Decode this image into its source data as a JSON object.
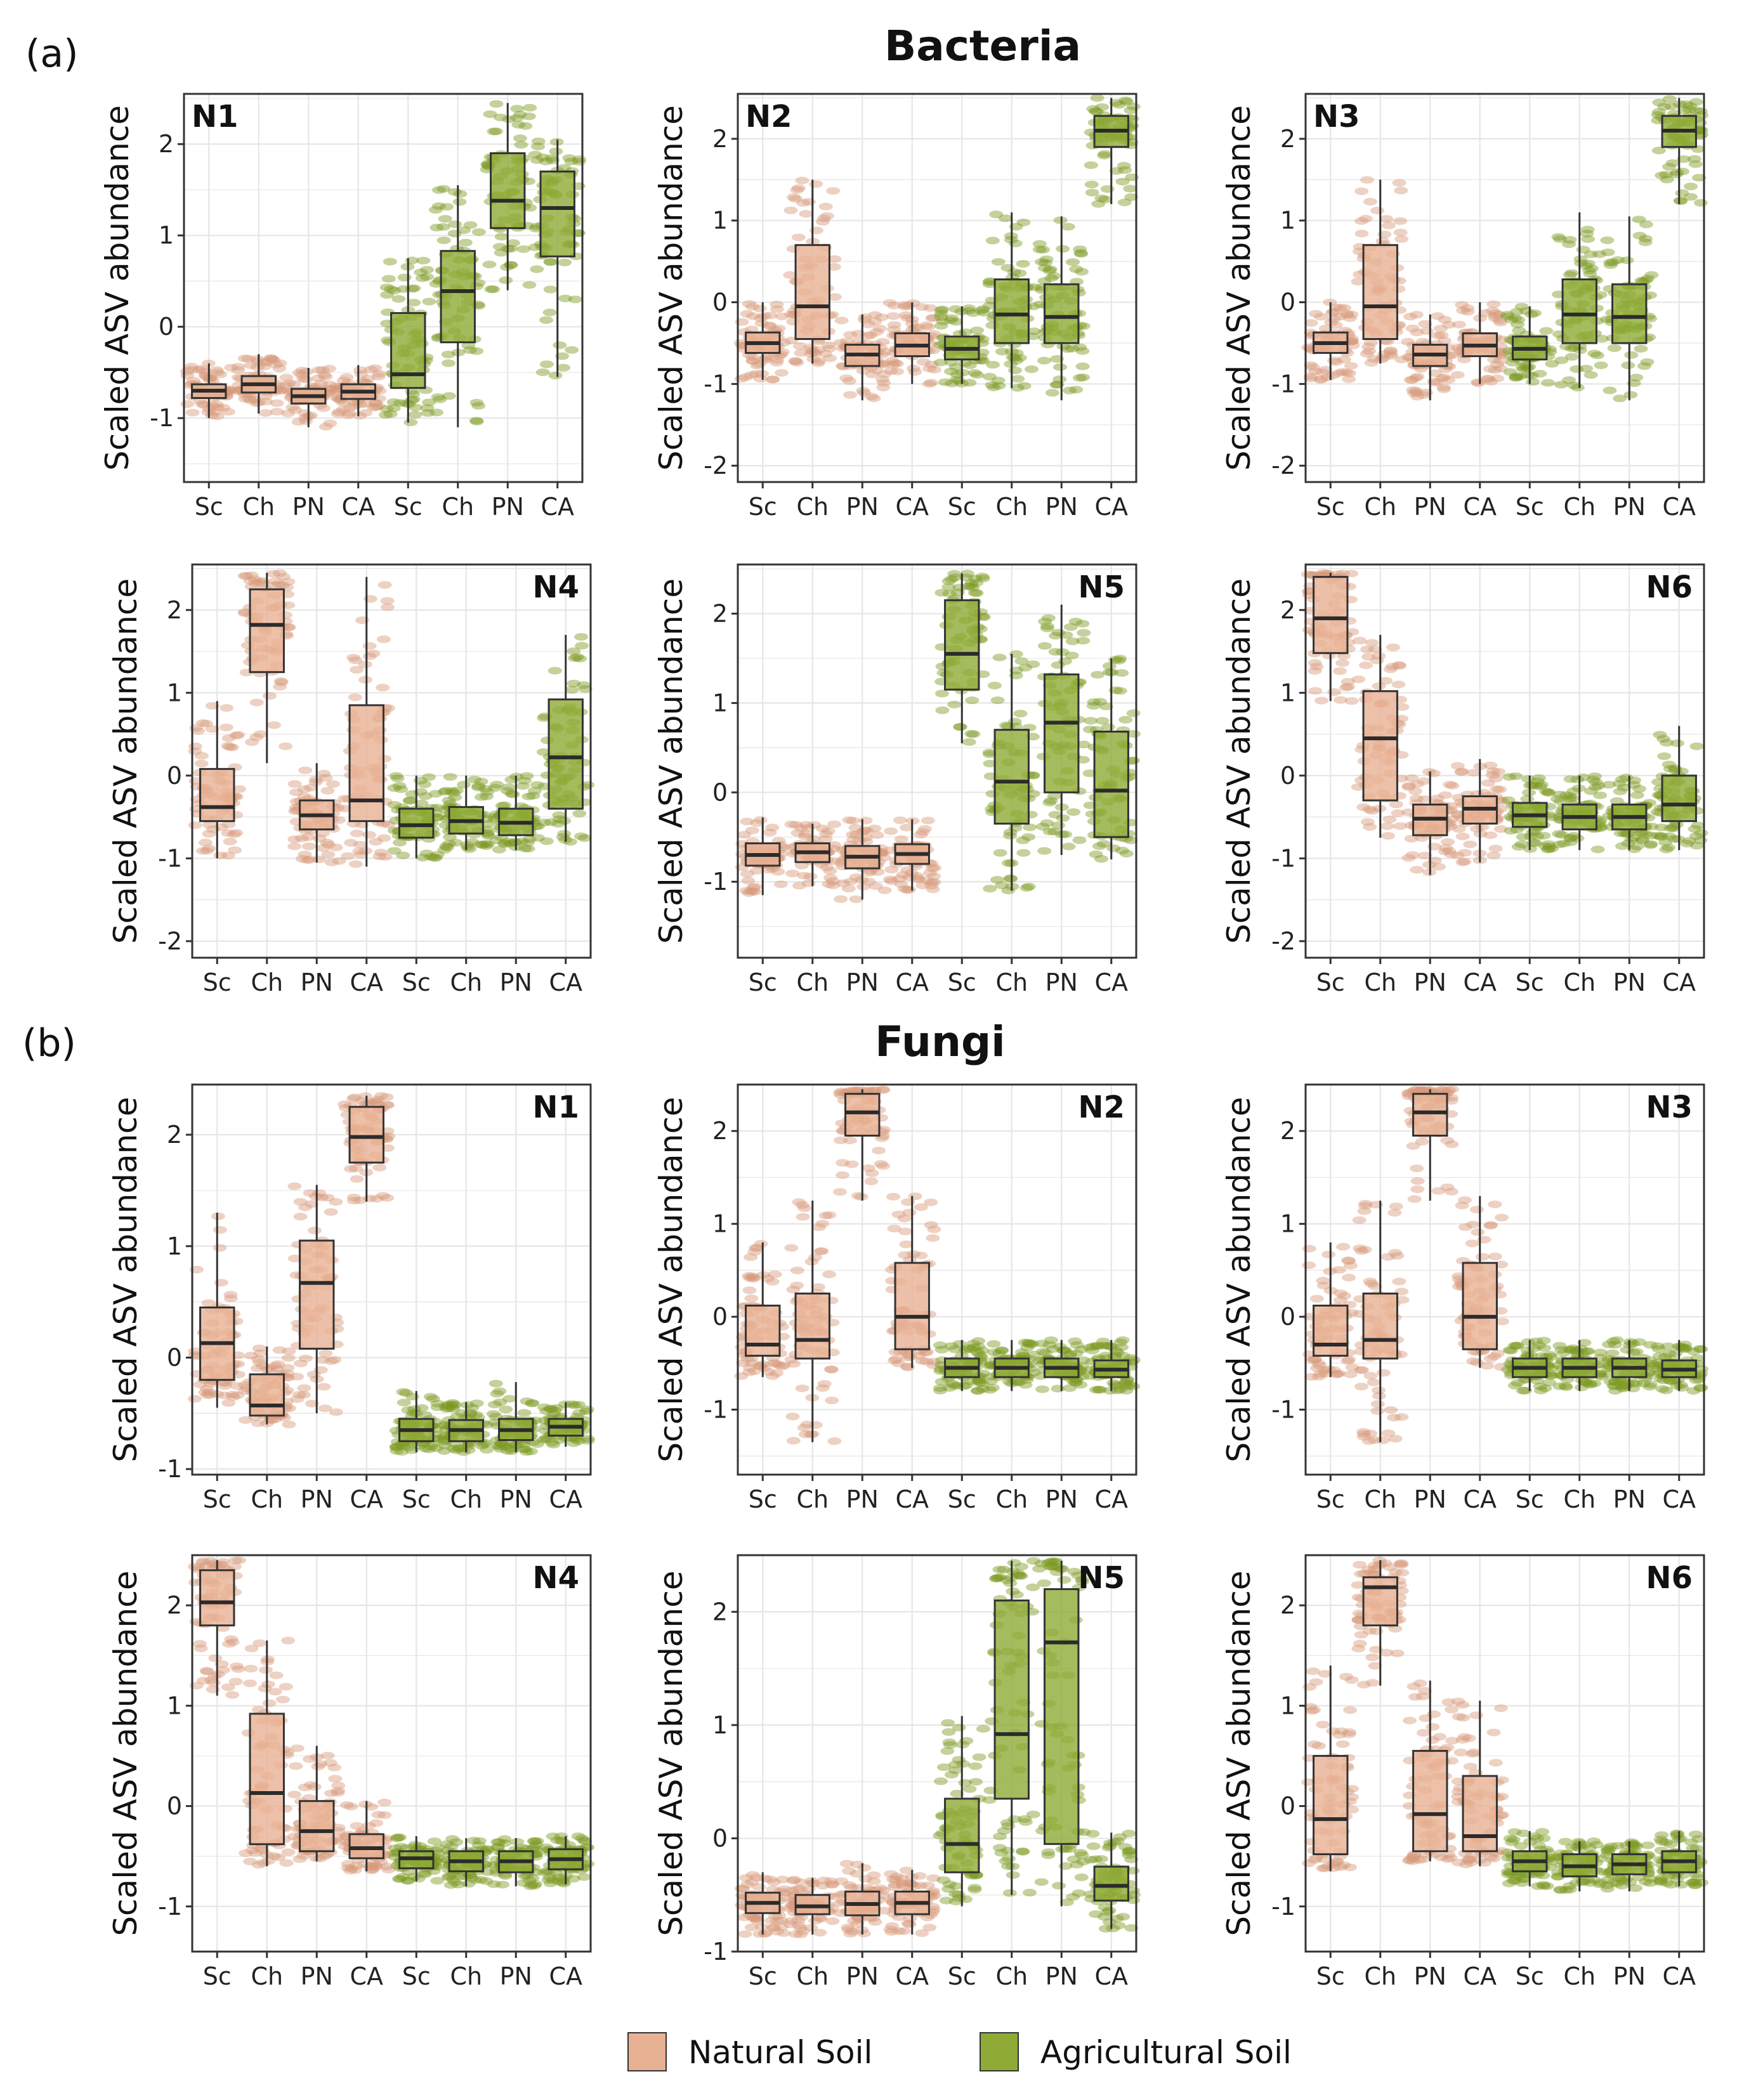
{
  "figure": {
    "panel_a_label": "(a)",
    "panel_b_label": "(b)",
    "bacteria_title": "Bacteria",
    "fungi_title": "Fungi",
    "legend": [
      {
        "label": "Natural Soil",
        "color": "#e8b193"
      },
      {
        "label": "Agricultural Soil",
        "color": "#8fab36"
      }
    ]
  },
  "colors": {
    "natural_box": "#e8b193",
    "natural_point": "#d89a7a",
    "agri_box": "#8fab36",
    "agri_point": "#7c9a22",
    "median": "#2b2b2b",
    "grid": "#e6e6e6"
  },
  "chart_data": [
    {
      "type": "box",
      "section": "Bacteria",
      "title": "N1",
      "title_pos": "top-left",
      "ylabel": "Scaled ASV abundance",
      "ylim": [
        -1.7,
        2.55
      ],
      "yticks": [
        -1,
        0,
        1,
        2
      ],
      "categories": [
        "Sc",
        "Ch",
        "PN",
        "CA",
        "Sc",
        "Ch",
        "PN",
        "CA"
      ],
      "groups": [
        "Natural Soil",
        "Natural Soil",
        "Natural Soil",
        "Natural Soil",
        "Agricultural Soil",
        "Agricultural Soil",
        "Agricultural Soil",
        "Agricultural Soil"
      ],
      "boxes": [
        [
          -1.0,
          -0.78,
          -0.7,
          -0.63,
          -0.4
        ],
        [
          -0.95,
          -0.72,
          -0.63,
          -0.54,
          -0.3
        ],
        [
          -1.1,
          -0.84,
          -0.76,
          -0.68,
          -0.45
        ],
        [
          -0.98,
          -0.79,
          -0.71,
          -0.63,
          -0.42
        ],
        [
          -1.05,
          -0.67,
          -0.52,
          0.15,
          0.75
        ],
        [
          -1.1,
          -0.17,
          0.39,
          0.83,
          1.55
        ],
        [
          0.4,
          1.08,
          1.38,
          1.9,
          2.45
        ],
        [
          -0.55,
          0.77,
          1.3,
          1.7,
          2.05
        ]
      ]
    },
    {
      "type": "box",
      "section": "Bacteria",
      "title": "N2",
      "title_pos": "top-left",
      "ylabel": "Scaled ASV abundance",
      "ylim": [
        -2.2,
        2.55
      ],
      "yticks": [
        -2,
        -1,
        0,
        1,
        2
      ],
      "categories": [
        "Sc",
        "Ch",
        "PN",
        "CA",
        "Sc",
        "Ch",
        "PN",
        "CA"
      ],
      "groups": [
        "Natural Soil",
        "Natural Soil",
        "Natural Soil",
        "Natural Soil",
        "Agricultural Soil",
        "Agricultural Soil",
        "Agricultural Soil",
        "Agricultural Soil"
      ],
      "boxes": [
        [
          -0.95,
          -0.62,
          -0.5,
          -0.37,
          0.0
        ],
        [
          -0.75,
          -0.45,
          -0.05,
          0.7,
          1.5
        ],
        [
          -1.2,
          -0.78,
          -0.64,
          -0.52,
          -0.15
        ],
        [
          -1.0,
          -0.66,
          -0.53,
          -0.38,
          0.0
        ],
        [
          -1.0,
          -0.7,
          -0.57,
          -0.42,
          -0.05
        ],
        [
          -1.05,
          -0.5,
          -0.15,
          0.28,
          1.1
        ],
        [
          -1.2,
          -0.5,
          -0.18,
          0.22,
          1.05
        ],
        [
          1.2,
          1.9,
          2.1,
          2.28,
          2.5
        ]
      ]
    },
    {
      "type": "box",
      "section": "Bacteria",
      "title": "N3",
      "title_pos": "top-left",
      "ylabel": "Scaled ASV abundance",
      "ylim": [
        -2.2,
        2.55
      ],
      "yticks": [
        -2,
        -1,
        0,
        1,
        2
      ],
      "categories": [
        "Sc",
        "Ch",
        "PN",
        "CA",
        "Sc",
        "Ch",
        "PN",
        "CA"
      ],
      "groups": [
        "Natural Soil",
        "Natural Soil",
        "Natural Soil",
        "Natural Soil",
        "Agricultural Soil",
        "Agricultural Soil",
        "Agricultural Soil",
        "Agricultural Soil"
      ],
      "boxes": [
        [
          -0.95,
          -0.62,
          -0.5,
          -0.37,
          0.0
        ],
        [
          -0.75,
          -0.45,
          -0.05,
          0.7,
          1.5
        ],
        [
          -1.2,
          -0.78,
          -0.64,
          -0.52,
          -0.15
        ],
        [
          -1.0,
          -0.66,
          -0.53,
          -0.38,
          0.0
        ],
        [
          -1.0,
          -0.7,
          -0.57,
          -0.42,
          -0.05
        ],
        [
          -1.05,
          -0.5,
          -0.15,
          0.28,
          1.1
        ],
        [
          -1.2,
          -0.5,
          -0.18,
          0.22,
          1.05
        ],
        [
          1.2,
          1.9,
          2.1,
          2.28,
          2.5
        ]
      ]
    },
    {
      "type": "box",
      "section": "Bacteria",
      "title": "N4",
      "title_pos": "top-right",
      "ylabel": "Scaled ASV abundance",
      "ylim": [
        -2.2,
        2.55
      ],
      "yticks": [
        -2,
        -1,
        0,
        1,
        2
      ],
      "categories": [
        "Sc",
        "Ch",
        "PN",
        "CA",
        "Sc",
        "Ch",
        "PN",
        "CA"
      ],
      "groups": [
        "Natural Soil",
        "Natural Soil",
        "Natural Soil",
        "Natural Soil",
        "Agricultural Soil",
        "Agricultural Soil",
        "Agricultural Soil",
        "Agricultural Soil"
      ],
      "boxes": [
        [
          -1.0,
          -0.55,
          -0.38,
          0.08,
          0.9
        ],
        [
          0.15,
          1.25,
          1.82,
          2.25,
          2.45
        ],
        [
          -1.05,
          -0.65,
          -0.48,
          -0.3,
          0.15
        ],
        [
          -1.1,
          -0.55,
          -0.3,
          0.85,
          2.4
        ],
        [
          -1.0,
          -0.75,
          -0.6,
          -0.4,
          0.0
        ],
        [
          -0.9,
          -0.7,
          -0.55,
          -0.38,
          0.0
        ],
        [
          -0.9,
          -0.72,
          -0.57,
          -0.4,
          0.0
        ],
        [
          -0.8,
          -0.4,
          0.22,
          0.92,
          1.7
        ]
      ]
    },
    {
      "type": "box",
      "section": "Bacteria",
      "title": "N5",
      "title_pos": "top-right",
      "ylabel": "Scaled ASV abundance",
      "ylim": [
        -1.85,
        2.55
      ],
      "yticks": [
        -1,
        0,
        1,
        2
      ],
      "categories": [
        "Sc",
        "Ch",
        "PN",
        "CA",
        "Sc",
        "Ch",
        "PN",
        "CA"
      ],
      "groups": [
        "Natural Soil",
        "Natural Soil",
        "Natural Soil",
        "Natural Soil",
        "Agricultural Soil",
        "Agricultural Soil",
        "Agricultural Soil",
        "Agricultural Soil"
      ],
      "boxes": [
        [
          -1.15,
          -0.82,
          -0.7,
          -0.57,
          -0.28
        ],
        [
          -1.05,
          -0.78,
          -0.67,
          -0.57,
          -0.35
        ],
        [
          -1.2,
          -0.85,
          -0.72,
          -0.6,
          -0.3
        ],
        [
          -1.1,
          -0.8,
          -0.69,
          -0.58,
          -0.3
        ],
        [
          0.55,
          1.15,
          1.55,
          2.15,
          2.45
        ],
        [
          -1.1,
          -0.35,
          0.12,
          0.7,
          1.55
        ],
        [
          -0.7,
          0.0,
          0.78,
          1.32,
          2.1
        ],
        [
          -0.75,
          -0.5,
          0.02,
          0.68,
          1.5
        ]
      ]
    },
    {
      "type": "box",
      "section": "Bacteria",
      "title": "N6",
      "title_pos": "top-right",
      "ylabel": "Scaled ASV abundance",
      "ylim": [
        -2.2,
        2.55
      ],
      "yticks": [
        -2,
        -1,
        0,
        1,
        2
      ],
      "categories": [
        "Sc",
        "Ch",
        "PN",
        "CA",
        "Sc",
        "Ch",
        "PN",
        "CA"
      ],
      "groups": [
        "Natural Soil",
        "Natural Soil",
        "Natural Soil",
        "Natural Soil",
        "Agricultural Soil",
        "Agricultural Soil",
        "Agricultural Soil",
        "Agricultural Soil"
      ],
      "boxes": [
        [
          0.9,
          1.48,
          1.9,
          2.4,
          2.45
        ],
        [
          -0.75,
          -0.3,
          0.45,
          1.02,
          1.7
        ],
        [
          -1.2,
          -0.72,
          -0.52,
          -0.35,
          0.05
        ],
        [
          -1.05,
          -0.58,
          -0.4,
          -0.25,
          0.2
        ],
        [
          -0.9,
          -0.62,
          -0.48,
          -0.33,
          0.0
        ],
        [
          -0.9,
          -0.65,
          -0.5,
          -0.35,
          0.0
        ],
        [
          -0.9,
          -0.65,
          -0.5,
          -0.35,
          0.0
        ],
        [
          -0.9,
          -0.55,
          -0.35,
          0.0,
          0.6
        ]
      ]
    },
    {
      "type": "box",
      "section": "Fungi",
      "title": "N1",
      "title_pos": "top-right",
      "ylabel": "Scaled ASV abundance",
      "ylim": [
        -1.05,
        2.45
      ],
      "yticks": [
        -1,
        0,
        1,
        2
      ],
      "categories": [
        "Sc",
        "Ch",
        "PN",
        "CA",
        "Sc",
        "Ch",
        "PN",
        "CA"
      ],
      "groups": [
        "Natural Soil",
        "Natural Soil",
        "Natural Soil",
        "Natural Soil",
        "Agricultural Soil",
        "Agricultural Soil",
        "Agricultural Soil",
        "Agricultural Soil"
      ],
      "boxes": [
        [
          -0.45,
          -0.2,
          0.13,
          0.45,
          1.3
        ],
        [
          -0.6,
          -0.52,
          -0.43,
          -0.15,
          0.1
        ],
        [
          -0.5,
          0.08,
          0.67,
          1.05,
          1.55
        ],
        [
          1.4,
          1.75,
          1.98,
          2.25,
          2.35
        ],
        [
          -0.85,
          -0.75,
          -0.65,
          -0.55,
          -0.3
        ],
        [
          -0.85,
          -0.75,
          -0.65,
          -0.56,
          -0.4
        ],
        [
          -0.85,
          -0.74,
          -0.65,
          -0.55,
          -0.22
        ],
        [
          -0.8,
          -0.7,
          -0.62,
          -0.55,
          -0.4
        ]
      ]
    },
    {
      "type": "box",
      "section": "Fungi",
      "title": "N2",
      "title_pos": "top-right",
      "ylabel": "Scaled ASV abundance",
      "ylim": [
        -1.7,
        2.5
      ],
      "yticks": [
        -1,
        0,
        1,
        2
      ],
      "categories": [
        "Sc",
        "Ch",
        "PN",
        "CA",
        "Sc",
        "Ch",
        "PN",
        "CA"
      ],
      "groups": [
        "Natural Soil",
        "Natural Soil",
        "Natural Soil",
        "Natural Soil",
        "Agricultural Soil",
        "Agricultural Soil",
        "Agricultural Soil",
        "Agricultural Soil"
      ],
      "boxes": [
        [
          -0.65,
          -0.42,
          -0.3,
          0.12,
          0.8
        ],
        [
          -1.35,
          -0.45,
          -0.25,
          0.25,
          1.25
        ],
        [
          1.25,
          1.95,
          2.2,
          2.4,
          2.45
        ],
        [
          -0.55,
          -0.35,
          0.0,
          0.58,
          1.3
        ],
        [
          -0.8,
          -0.65,
          -0.55,
          -0.45,
          -0.25
        ],
        [
          -0.8,
          -0.65,
          -0.55,
          -0.45,
          -0.25
        ],
        [
          -0.8,
          -0.65,
          -0.55,
          -0.45,
          -0.25
        ],
        [
          -0.8,
          -0.65,
          -0.57,
          -0.47,
          -0.25
        ]
      ]
    },
    {
      "type": "box",
      "section": "Fungi",
      "title": "N3",
      "title_pos": "top-right",
      "ylabel": "Scaled ASV abundance",
      "ylim": [
        -1.7,
        2.5
      ],
      "yticks": [
        -1,
        0,
        1,
        2
      ],
      "categories": [
        "Sc",
        "Ch",
        "PN",
        "CA",
        "Sc",
        "Ch",
        "PN",
        "CA"
      ],
      "groups": [
        "Natural Soil",
        "Natural Soil",
        "Natural Soil",
        "Natural Soil",
        "Agricultural Soil",
        "Agricultural Soil",
        "Agricultural Soil",
        "Agricultural Soil"
      ],
      "boxes": [
        [
          -0.65,
          -0.42,
          -0.3,
          0.12,
          0.8
        ],
        [
          -1.35,
          -0.45,
          -0.25,
          0.25,
          1.25
        ],
        [
          1.25,
          1.95,
          2.2,
          2.4,
          2.45
        ],
        [
          -0.55,
          -0.35,
          0.0,
          0.58,
          1.3
        ],
        [
          -0.8,
          -0.65,
          -0.55,
          -0.45,
          -0.25
        ],
        [
          -0.8,
          -0.65,
          -0.55,
          -0.45,
          -0.25
        ],
        [
          -0.8,
          -0.65,
          -0.55,
          -0.45,
          -0.25
        ],
        [
          -0.8,
          -0.65,
          -0.57,
          -0.47,
          -0.25
        ]
      ]
    },
    {
      "type": "box",
      "section": "Fungi",
      "title": "N4",
      "title_pos": "top-right",
      "ylabel": "Scaled ASV abundance",
      "ylim": [
        -1.45,
        2.5
      ],
      "yticks": [
        -1,
        0,
        1,
        2
      ],
      "categories": [
        "Sc",
        "Ch",
        "PN",
        "CA",
        "Sc",
        "Ch",
        "PN",
        "CA"
      ],
      "groups": [
        "Natural Soil",
        "Natural Soil",
        "Natural Soil",
        "Natural Soil",
        "Agricultural Soil",
        "Agricultural Soil",
        "Agricultural Soil",
        "Agricultural Soil"
      ],
      "boxes": [
        [
          1.1,
          1.8,
          2.03,
          2.35,
          2.45
        ],
        [
          -0.6,
          -0.38,
          0.13,
          0.92,
          1.65
        ],
        [
          -0.55,
          -0.45,
          -0.25,
          0.05,
          0.6
        ],
        [
          -0.65,
          -0.52,
          -0.42,
          -0.28,
          0.05
        ],
        [
          -0.75,
          -0.62,
          -0.52,
          -0.45,
          -0.3
        ],
        [
          -0.8,
          -0.65,
          -0.55,
          -0.45,
          -0.32
        ],
        [
          -0.8,
          -0.66,
          -0.55,
          -0.45,
          -0.32
        ],
        [
          -0.78,
          -0.63,
          -0.53,
          -0.43,
          -0.3
        ]
      ]
    },
    {
      "type": "box",
      "section": "Fungi",
      "title": "N5",
      "title_pos": "top-right",
      "ylabel": "Scaled ASV abundance",
      "ylim": [
        -1.0,
        2.5
      ],
      "yticks": [
        -1,
        0,
        1,
        2
      ],
      "categories": [
        "Sc",
        "Ch",
        "PN",
        "CA",
        "Sc",
        "Ch",
        "PN",
        "CA"
      ],
      "groups": [
        "Natural Soil",
        "Natural Soil",
        "Natural Soil",
        "Natural Soil",
        "Agricultural Soil",
        "Agricultural Soil",
        "Agricultural Soil",
        "Agricultural Soil"
      ],
      "boxes": [
        [
          -0.85,
          -0.66,
          -0.57,
          -0.48,
          -0.3
        ],
        [
          -0.85,
          -0.67,
          -0.6,
          -0.5,
          -0.35
        ],
        [
          -0.85,
          -0.68,
          -0.58,
          -0.47,
          -0.22
        ],
        [
          -0.85,
          -0.67,
          -0.57,
          -0.47,
          -0.28
        ],
        [
          -0.6,
          -0.3,
          -0.05,
          0.35,
          1.08
        ],
        [
          -0.5,
          0.35,
          0.92,
          2.1,
          2.45
        ],
        [
          -0.6,
          -0.05,
          1.73,
          2.2,
          2.45
        ],
        [
          -0.8,
          -0.55,
          -0.42,
          -0.25,
          0.05
        ]
      ]
    },
    {
      "type": "box",
      "section": "Fungi",
      "title": "N6",
      "title_pos": "top-right",
      "ylabel": "Scaled ASV abundance",
      "ylim": [
        -1.45,
        2.5
      ],
      "yticks": [
        -1,
        0,
        1,
        2
      ],
      "categories": [
        "Sc",
        "Ch",
        "PN",
        "CA",
        "Sc",
        "Ch",
        "PN",
        "CA"
      ],
      "groups": [
        "Natural Soil",
        "Natural Soil",
        "Natural Soil",
        "Natural Soil",
        "Agricultural Soil",
        "Agricultural Soil",
        "Agricultural Soil",
        "Agricultural Soil"
      ],
      "boxes": [
        [
          -0.65,
          -0.48,
          -0.13,
          0.5,
          1.4
        ],
        [
          1.2,
          1.8,
          2.18,
          2.28,
          2.45
        ],
        [
          -0.55,
          -0.45,
          -0.08,
          0.55,
          1.25
        ],
        [
          -0.6,
          -0.45,
          -0.3,
          0.3,
          1.05
        ],
        [
          -0.8,
          -0.65,
          -0.55,
          -0.45,
          -0.25
        ],
        [
          -0.85,
          -0.7,
          -0.6,
          -0.48,
          -0.35
        ],
        [
          -0.85,
          -0.68,
          -0.58,
          -0.48,
          -0.35
        ],
        [
          -0.8,
          -0.66,
          -0.55,
          -0.45,
          -0.25
        ]
      ]
    }
  ]
}
